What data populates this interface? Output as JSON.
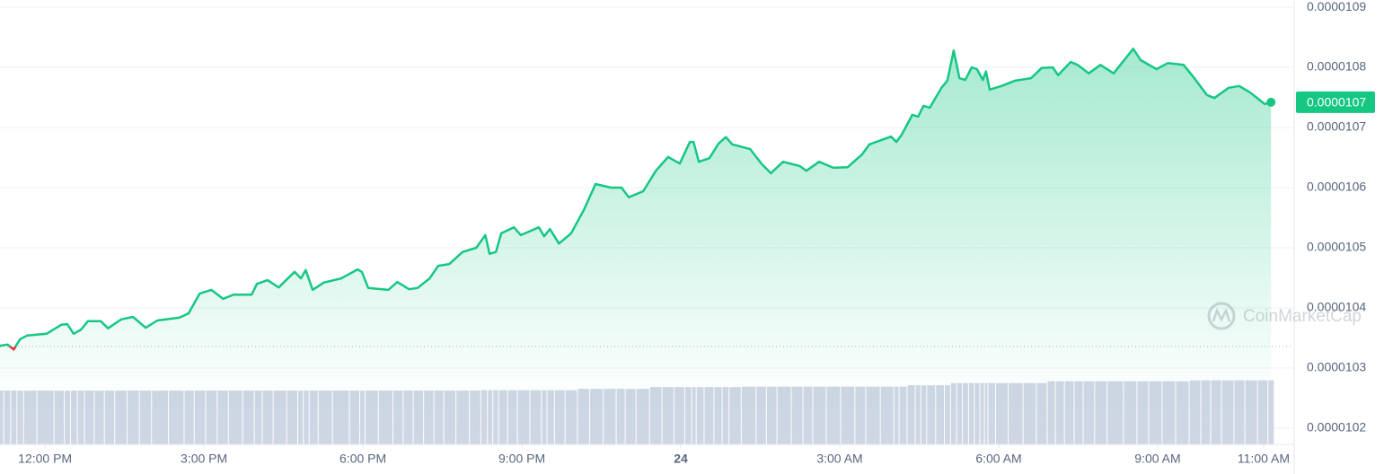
{
  "chart_data": {
    "type": "line",
    "x": [
      11.15,
      11.29,
      11.41,
      11.53,
      11.66,
      12.03,
      12.31,
      12.42,
      12.54,
      12.68,
      12.81,
      13.05,
      13.19,
      13.44,
      13.66,
      13.9,
      14.12,
      14.54,
      14.71,
      14.92,
      15.14,
      15.36,
      15.56,
      15.9,
      16.0,
      16.2,
      16.41,
      16.71,
      16.83,
      16.92,
      17.05,
      17.26,
      17.59,
      17.9,
      17.98,
      18.1,
      18.48,
      18.65,
      18.87,
      19.03,
      19.26,
      19.42,
      19.63,
      19.88,
      20.14,
      20.31,
      20.39,
      20.51,
      20.61,
      20.85,
      20.98,
      21.32,
      21.42,
      21.53,
      21.7,
      21.93,
      22.17,
      22.39,
      22.68,
      22.88,
      23.02,
      23.29,
      23.53,
      23.76,
      23.98,
      24.17,
      24.24,
      24.34,
      24.54,
      24.71,
      24.85,
      24.97,
      25.31,
      25.53,
      25.7,
      25.93,
      26.24,
      26.37,
      26.61,
      26.88,
      27.15,
      27.42,
      27.56,
      27.97,
      28.07,
      28.17,
      28.37,
      28.48,
      28.58,
      28.7,
      28.92,
      29.03,
      29.15,
      29.26,
      29.37,
      29.49,
      29.59,
      29.7,
      29.76,
      29.83,
      30.05,
      30.31,
      30.61,
      30.81,
      31.02,
      31.12,
      31.36,
      31.49,
      31.7,
      31.92,
      32.17,
      32.54,
      32.68,
      32.98,
      33.19,
      33.49,
      33.7,
      33.93,
      34.07,
      34.34,
      34.54,
      34.75,
      35.02,
      35.14
    ],
    "series": [
      {
        "color": "#16c784",
        "values": [
          1.0337e-05,
          1.0339e-05,
          1.0331e-05,
          1.0348e-05,
          1.0354e-05,
          1.0357e-05,
          1.0372e-05,
          1.0373e-05,
          1.0357e-05,
          1.0364e-05,
          1.0378e-05,
          1.0378e-05,
          1.0366e-05,
          1.0381e-05,
          1.0385e-05,
          1.0367e-05,
          1.0379e-05,
          1.0384e-05,
          1.0391e-05,
          1.0424e-05,
          1.043e-05,
          1.0415e-05,
          1.0422e-05,
          1.0422e-05,
          1.044e-05,
          1.0446e-05,
          1.0434e-05,
          1.046e-05,
          1.0449e-05,
          1.0463e-05,
          1.043e-05,
          1.0442e-05,
          1.0449e-05,
          1.0464e-05,
          1.046e-05,
          1.0433e-05,
          1.043e-05,
          1.0443e-05,
          1.0431e-05,
          1.0433e-05,
          1.0449e-05,
          1.047e-05,
          1.0473e-05,
          1.0493e-05,
          1.05e-05,
          1.0521e-05,
          1.049e-05,
          1.0493e-05,
          1.0524e-05,
          1.0534e-05,
          1.0521e-05,
          1.0534e-05,
          1.0519e-05,
          1.0531e-05,
          1.0507e-05,
          1.0524e-05,
          1.0563e-05,
          1.0606e-05,
          1.06e-05,
          1.06e-05,
          1.0584e-05,
          1.0594e-05,
          1.0628e-05,
          1.0651e-05,
          1.064e-05,
          1.0676e-05,
          1.0676e-05,
          1.0643e-05,
          1.0649e-05,
          1.0673e-05,
          1.0684e-05,
          1.0672e-05,
          1.0664e-05,
          1.0639e-05,
          1.0624e-05,
          1.0643e-05,
          1.0636e-05,
          1.0628e-05,
          1.0643e-05,
          1.0633e-05,
          1.0634e-05,
          1.0655e-05,
          1.0672e-05,
          1.0685e-05,
          1.0676e-05,
          1.0688e-05,
          1.0721e-05,
          1.0718e-05,
          1.0736e-05,
          1.0733e-05,
          1.0766e-05,
          1.0778e-05,
          1.0828e-05,
          1.0782e-05,
          1.0779e-05,
          1.08e-05,
          1.0797e-05,
          1.0779e-05,
          1.0793e-05,
          1.0763e-05,
          1.0769e-05,
          1.0778e-05,
          1.0782e-05,
          1.0799e-05,
          1.08e-05,
          1.0787e-05,
          1.0809e-05,
          1.0804e-05,
          1.079e-05,
          1.0804e-05,
          1.079e-05,
          1.0831e-05,
          1.0812e-05,
          1.0797e-05,
          1.0807e-05,
          1.0804e-05,
          1.0781e-05,
          1.0754e-05,
          1.0749e-05,
          1.0766e-05,
          1.0769e-05,
          1.0758e-05,
          1.0739e-05,
          1.0742e-05
        ]
      },
      {
        "type": "bar",
        "axis": "y2",
        "color": "#cfd6e4",
        "values": [
          12.1,
          12.1,
          12.1,
          12.1,
          12.1,
          12.1,
          12.1,
          12.1,
          12.1,
          12.1,
          12.1,
          12.1,
          12.1,
          12.1,
          12.1,
          12.1,
          12.1,
          12.1,
          12.1,
          12.1,
          12.1,
          12.1,
          12.1,
          12.1,
          12.1,
          12.1,
          12.1,
          12.1,
          12.1,
          12.1,
          12.1,
          12.1,
          12.1,
          12.1,
          12.1,
          12.1,
          12.1,
          12.1,
          12.1,
          12.1,
          12.1,
          12.1,
          12.1,
          12.1,
          12.1,
          12.2,
          12.2,
          12.2,
          12.2,
          12.2,
          12.2,
          12.2,
          12.2,
          12.2,
          12.2,
          12.2,
          12.5,
          12.5,
          12.5,
          12.5,
          12.5,
          12.5,
          12.9,
          12.9,
          12.9,
          12.9,
          12.9,
          12.9,
          12.9,
          12.9,
          12.9,
          12.9,
          13.0,
          13.0,
          13.0,
          13.0,
          13.0,
          13.0,
          13.0,
          13.0,
          13.0,
          13.0,
          13.0,
          13.0,
          13.0,
          13.0,
          13.3,
          13.3,
          13.3,
          13.3,
          13.3,
          13.3,
          13.8,
          13.8,
          13.8,
          13.8,
          13.8,
          13.8,
          13.8,
          13.8,
          13.8,
          13.8,
          13.8,
          13.8,
          14.2,
          14.2,
          14.2,
          14.2,
          14.2,
          14.2,
          14.2,
          14.2,
          14.2,
          14.2,
          14.2,
          14.2,
          14.4,
          14.4,
          14.4,
          14.4,
          14.4,
          14.4,
          14.4,
          14.4
        ]
      }
    ],
    "down_color": "#ea3943",
    "reference_line": 1.03358e-05,
    "last_price": {
      "value": 1.0742e-05,
      "label": "0.0000107"
    },
    "xlim": [
      11.15,
      35.56
    ],
    "xticks": [
      {
        "value": 12,
        "label": "12:00 PM"
      },
      {
        "value": 15,
        "label": "3:00 PM"
      },
      {
        "value": 18,
        "label": "6:00 PM"
      },
      {
        "value": 21,
        "label": "9:00 PM"
      },
      24,
      {
        "value": 27,
        "label": "3:00 AM"
      },
      {
        "value": 30,
        "label": "6:00 AM"
      },
      {
        "value": 33,
        "label": "9:00 AM"
      },
      {
        "value": 35,
        "label": "11:00 AM"
      }
    ],
    "ylim": [
      1.0173e-05,
      1.0912e-05
    ],
    "yticks": [
      1.02e-05,
      1.03e-05,
      1.04e-05,
      1.05e-05,
      1.06e-05,
      1.07e-05,
      1.08e-05,
      1.09e-05
    ],
    "y2lim": [
      0,
      100
    ],
    "grid": true,
    "watermark": "CoinMarketCap"
  }
}
